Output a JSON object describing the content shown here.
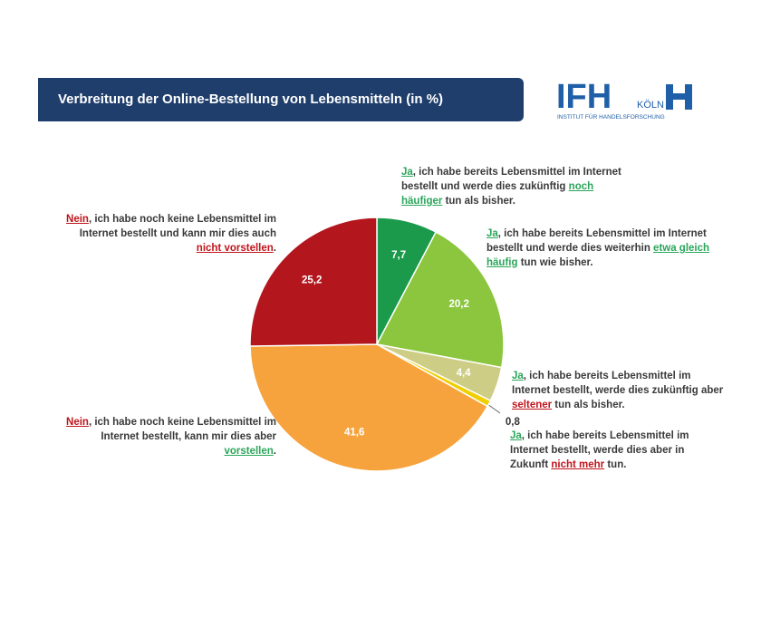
{
  "chart_data": {
    "type": "pie",
    "title": "Verbreitung der Online-Bestellung von Lebensmitteln (in %)",
    "values": [
      7.7,
      20.2,
      4.4,
      0.8,
      41.6,
      25.2
    ],
    "value_labels": [
      "7,7",
      "20,2",
      "4,4",
      "0,8",
      "41,6",
      "25,2"
    ],
    "colors": [
      "#1b9a4c",
      "#8cc63e",
      "#cdcd86",
      "#f0cf00",
      "#f7a33d",
      "#b3161d"
    ],
    "annotations": [
      [
        {
          "text": "Ja",
          "color": "#2aa65a",
          "underline": true
        },
        {
          "text": ", ich habe bereits Lebensmittel im Internet bestellt und werde dies zukünftig "
        },
        {
          "text": "noch häufiger",
          "color": "#2aa65a",
          "underline": true
        },
        {
          "text": " tun als bisher."
        }
      ],
      [
        {
          "text": "Ja",
          "color": "#2aa65a",
          "underline": true
        },
        {
          "text": ", ich habe bereits Lebensmittel im Internet bestellt und werde dies weiterhin "
        },
        {
          "text": "etwa gleich häufig",
          "color": "#2aa65a",
          "underline": true
        },
        {
          "text": " tun wie bisher."
        }
      ],
      [
        {
          "text": "Ja",
          "color": "#2aa65a",
          "underline": true
        },
        {
          "text": ", ich habe bereits Lebensmittel im Internet bestellt, werde dies zukünftig aber "
        },
        {
          "text": "seltener",
          "color": "#c0141b",
          "underline": true
        },
        {
          "text": " tun als bisher."
        }
      ],
      [
        {
          "text": "Ja",
          "color": "#2aa65a",
          "underline": true
        },
        {
          "text": ", ich habe bereits Lebensmittel im Internet bestellt, werde dies aber in Zukunft "
        },
        {
          "text": "nicht mehr",
          "color": "#c0141b",
          "underline": true
        },
        {
          "text": " tun."
        }
      ],
      [
        {
          "text": "Nein",
          "color": "#c0141b",
          "underline": true
        },
        {
          "text": ", ich habe noch keine Lebensmittel im Internet bestellt, kann mir dies aber "
        },
        {
          "text": "vorstellen",
          "color": "#2aa65a",
          "underline": true
        },
        {
          "text": "."
        }
      ],
      [
        {
          "text": "Nein",
          "color": "#c0141b",
          "underline": true
        },
        {
          "text": ", ich habe noch keine Lebensmittel im Internet bestellt und kann mir dies auch "
        },
        {
          "text": "nicht vorstellen",
          "color": "#c0141b",
          "underline": true
        },
        {
          "text": "."
        }
      ]
    ]
  },
  "logo": {
    "name": "IFH",
    "city": "KÖLN",
    "subtitle": "INSTITUT FÜR HANDELSFORSCHUNG"
  }
}
